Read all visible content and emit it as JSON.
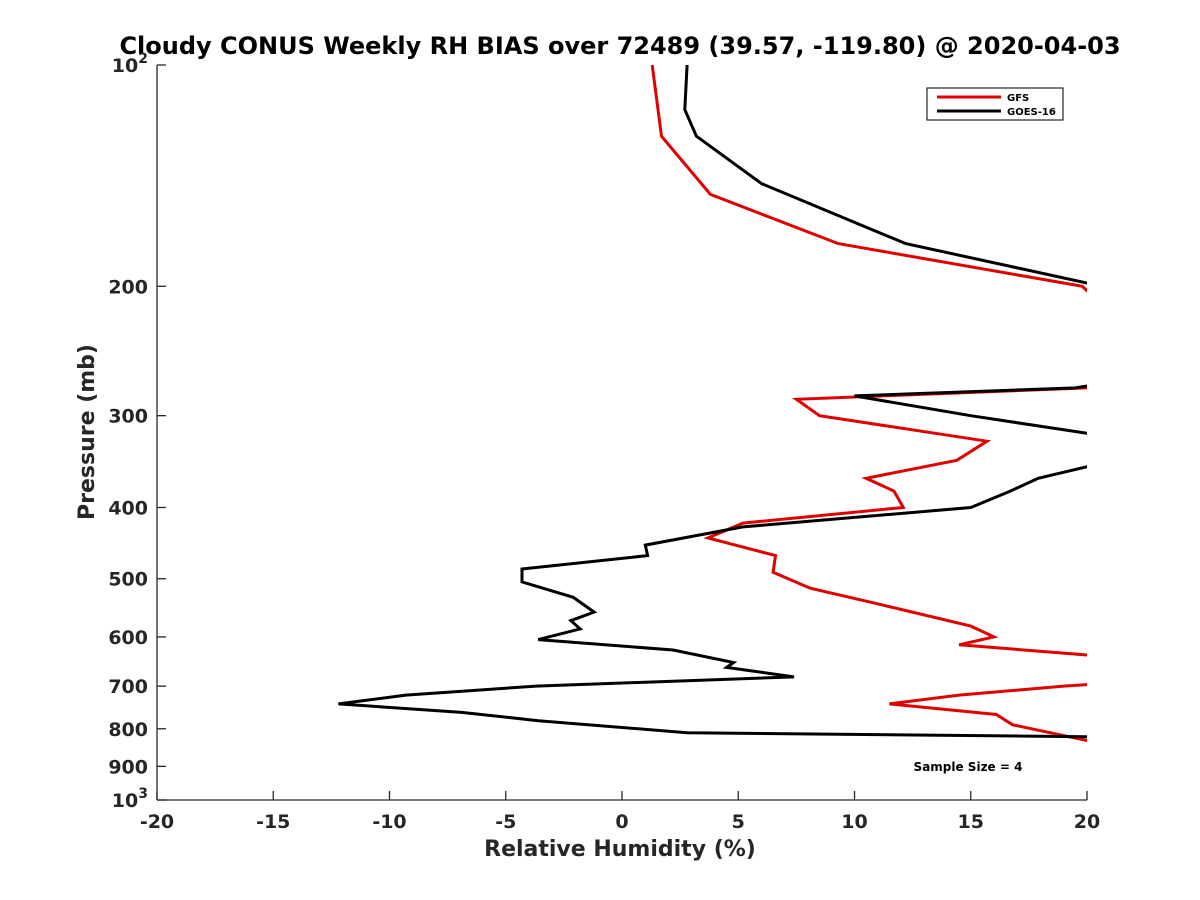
{
  "chart_data": {
    "type": "line",
    "title": "Cloudy CONUS Weekly RH BIAS over 72489 (39.57, -119.80) @ 2020-04-03",
    "xlabel": "Relative Humidity (%)",
    "ylabel": "Pressure (mb)",
    "xlim": [
      -20,
      20
    ],
    "ylim": [
      100,
      1000
    ],
    "y_scale": "log",
    "y_reversed": true,
    "grid": false,
    "legend_position": "top-right",
    "x_ticks": [
      "-20",
      "-15",
      "-10",
      "-5",
      "0",
      "5",
      "10",
      "15",
      "20"
    ],
    "y_ticks": [
      {
        "value": 100,
        "base": "10",
        "exp": "2"
      },
      {
        "value": 200,
        "label": "200"
      },
      {
        "value": 300,
        "label": "300"
      },
      {
        "value": 400,
        "label": "400"
      },
      {
        "value": 500,
        "label": "500"
      },
      {
        "value": 600,
        "label": "600"
      },
      {
        "value": 700,
        "label": "700"
      },
      {
        "value": 800,
        "label": "800"
      },
      {
        "value": 900,
        "label": "900"
      },
      {
        "value": 1000,
        "base": "10",
        "exp": "3"
      }
    ],
    "series": [
      {
        "name": "GFS",
        "color": "#e00000",
        "points": [
          {
            "x": 1.3,
            "y": 100
          },
          {
            "x": 1.7,
            "y": 125
          },
          {
            "x": 3.8,
            "y": 150
          },
          {
            "x": 9.3,
            "y": 175
          },
          {
            "x": 19.8,
            "y": 200
          },
          {
            "x": 20.5,
            "y": 210
          },
          {
            "x": 21.0,
            "y": 270
          },
          {
            "x": 20.0,
            "y": 275
          },
          {
            "x": 7.5,
            "y": 285
          },
          {
            "x": 8.5,
            "y": 300
          },
          {
            "x": 15.7,
            "y": 325
          },
          {
            "x": 14.4,
            "y": 345
          },
          {
            "x": 10.5,
            "y": 365
          },
          {
            "x": 11.7,
            "y": 380
          },
          {
            "x": 12.1,
            "y": 400
          },
          {
            "x": 5.2,
            "y": 420
          },
          {
            "x": 3.7,
            "y": 440
          },
          {
            "x": 6.6,
            "y": 465
          },
          {
            "x": 6.5,
            "y": 490
          },
          {
            "x": 8.1,
            "y": 515
          },
          {
            "x": 10.9,
            "y": 540
          },
          {
            "x": 15.0,
            "y": 580
          },
          {
            "x": 16.0,
            "y": 600
          },
          {
            "x": 14.5,
            "y": 615
          },
          {
            "x": 20.0,
            "y": 635
          },
          {
            "x": 20.5,
            "y": 640
          },
          {
            "x": 20.5,
            "y": 695
          },
          {
            "x": 19.0,
            "y": 700
          },
          {
            "x": 14.5,
            "y": 720
          },
          {
            "x": 11.5,
            "y": 740
          },
          {
            "x": 16.1,
            "y": 765
          },
          {
            "x": 16.8,
            "y": 790
          },
          {
            "x": 20.0,
            "y": 830
          },
          {
            "x": 21.0,
            "y": 845
          }
        ]
      },
      {
        "name": "GOES-16",
        "color": "#000000",
        "points": [
          {
            "x": 2.8,
            "y": 100
          },
          {
            "x": 2.7,
            "y": 115
          },
          {
            "x": 3.2,
            "y": 125
          },
          {
            "x": 6.0,
            "y": 145
          },
          {
            "x": 12.2,
            "y": 175
          },
          {
            "x": 20.0,
            "y": 198
          },
          {
            "x": 21.0,
            "y": 205
          },
          {
            "x": 21.0,
            "y": 270
          },
          {
            "x": 19.5,
            "y": 275
          },
          {
            "x": 10.0,
            "y": 282
          },
          {
            "x": 15.0,
            "y": 300
          },
          {
            "x": 20.0,
            "y": 317
          },
          {
            "x": 21.0,
            "y": 322
          },
          {
            "x": 21.0,
            "y": 345
          },
          {
            "x": 20.0,
            "y": 352
          },
          {
            "x": 17.9,
            "y": 365
          },
          {
            "x": 16.7,
            "y": 380
          },
          {
            "x": 15.0,
            "y": 400
          },
          {
            "x": 5.2,
            "y": 425
          },
          {
            "x": 1.0,
            "y": 450
          },
          {
            "x": 1.1,
            "y": 465
          },
          {
            "x": -4.3,
            "y": 485
          },
          {
            "x": -4.3,
            "y": 505
          },
          {
            "x": -2.1,
            "y": 530
          },
          {
            "x": -1.2,
            "y": 555
          },
          {
            "x": -2.2,
            "y": 570
          },
          {
            "x": -1.8,
            "y": 585
          },
          {
            "x": -3.6,
            "y": 605
          },
          {
            "x": 2.2,
            "y": 625
          },
          {
            "x": 4.8,
            "y": 650
          },
          {
            "x": 4.5,
            "y": 660
          },
          {
            "x": 7.4,
            "y": 680
          },
          {
            "x": -3.7,
            "y": 700
          },
          {
            "x": -9.3,
            "y": 720
          },
          {
            "x": -12.2,
            "y": 740
          },
          {
            "x": -6.9,
            "y": 760
          },
          {
            "x": -3.6,
            "y": 780
          },
          {
            "x": 2.8,
            "y": 810
          },
          {
            "x": 20.0,
            "y": 820
          },
          {
            "x": 21.0,
            "y": 825
          }
        ]
      }
    ],
    "annotation": "Sample Size = 4"
  }
}
